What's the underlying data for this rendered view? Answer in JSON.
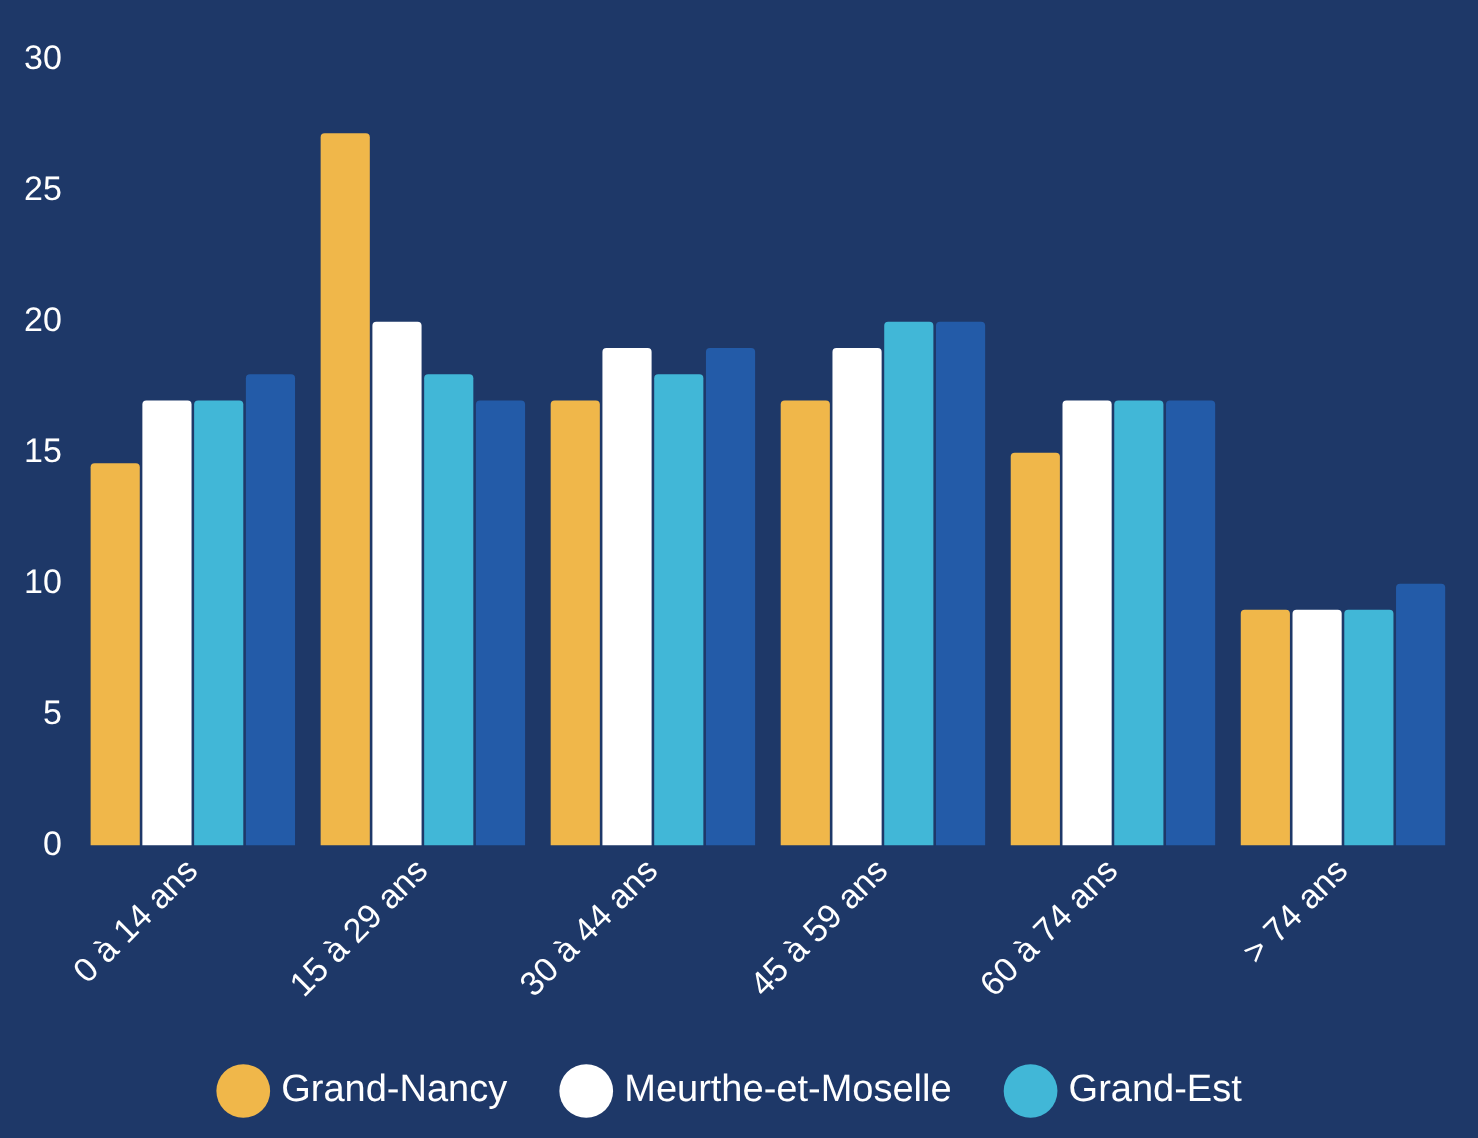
{
  "chart_data": {
    "type": "bar",
    "categories": [
      "0 à 14 ans",
      "15 à 29 ans",
      "30 à 44 ans",
      "45 à 59 ans",
      "60 à 74 ans",
      "> 74 ans"
    ],
    "series": [
      {
        "name": "Grand-Nancy",
        "color": "#f0b74a",
        "values": [
          14.6,
          27.2,
          17,
          17,
          15,
          9
        ]
      },
      {
        "name": "Meurthe-et-Moselle",
        "color": "#ffffff",
        "values": [
          17,
          20,
          19,
          19,
          17,
          9
        ]
      },
      {
        "name": "Grand-Est",
        "color": "#41b7d7",
        "values": [
          17,
          18,
          18,
          20,
          17,
          9
        ]
      },
      {
        "color": "#235ba8",
        "values": [
          18,
          17,
          19,
          20,
          17,
          10
        ]
      }
    ],
    "ylim": [
      0,
      30
    ],
    "yticks": [
      0,
      5,
      10,
      15,
      20,
      25,
      30
    ],
    "grid": false,
    "legend": "bottom"
  }
}
